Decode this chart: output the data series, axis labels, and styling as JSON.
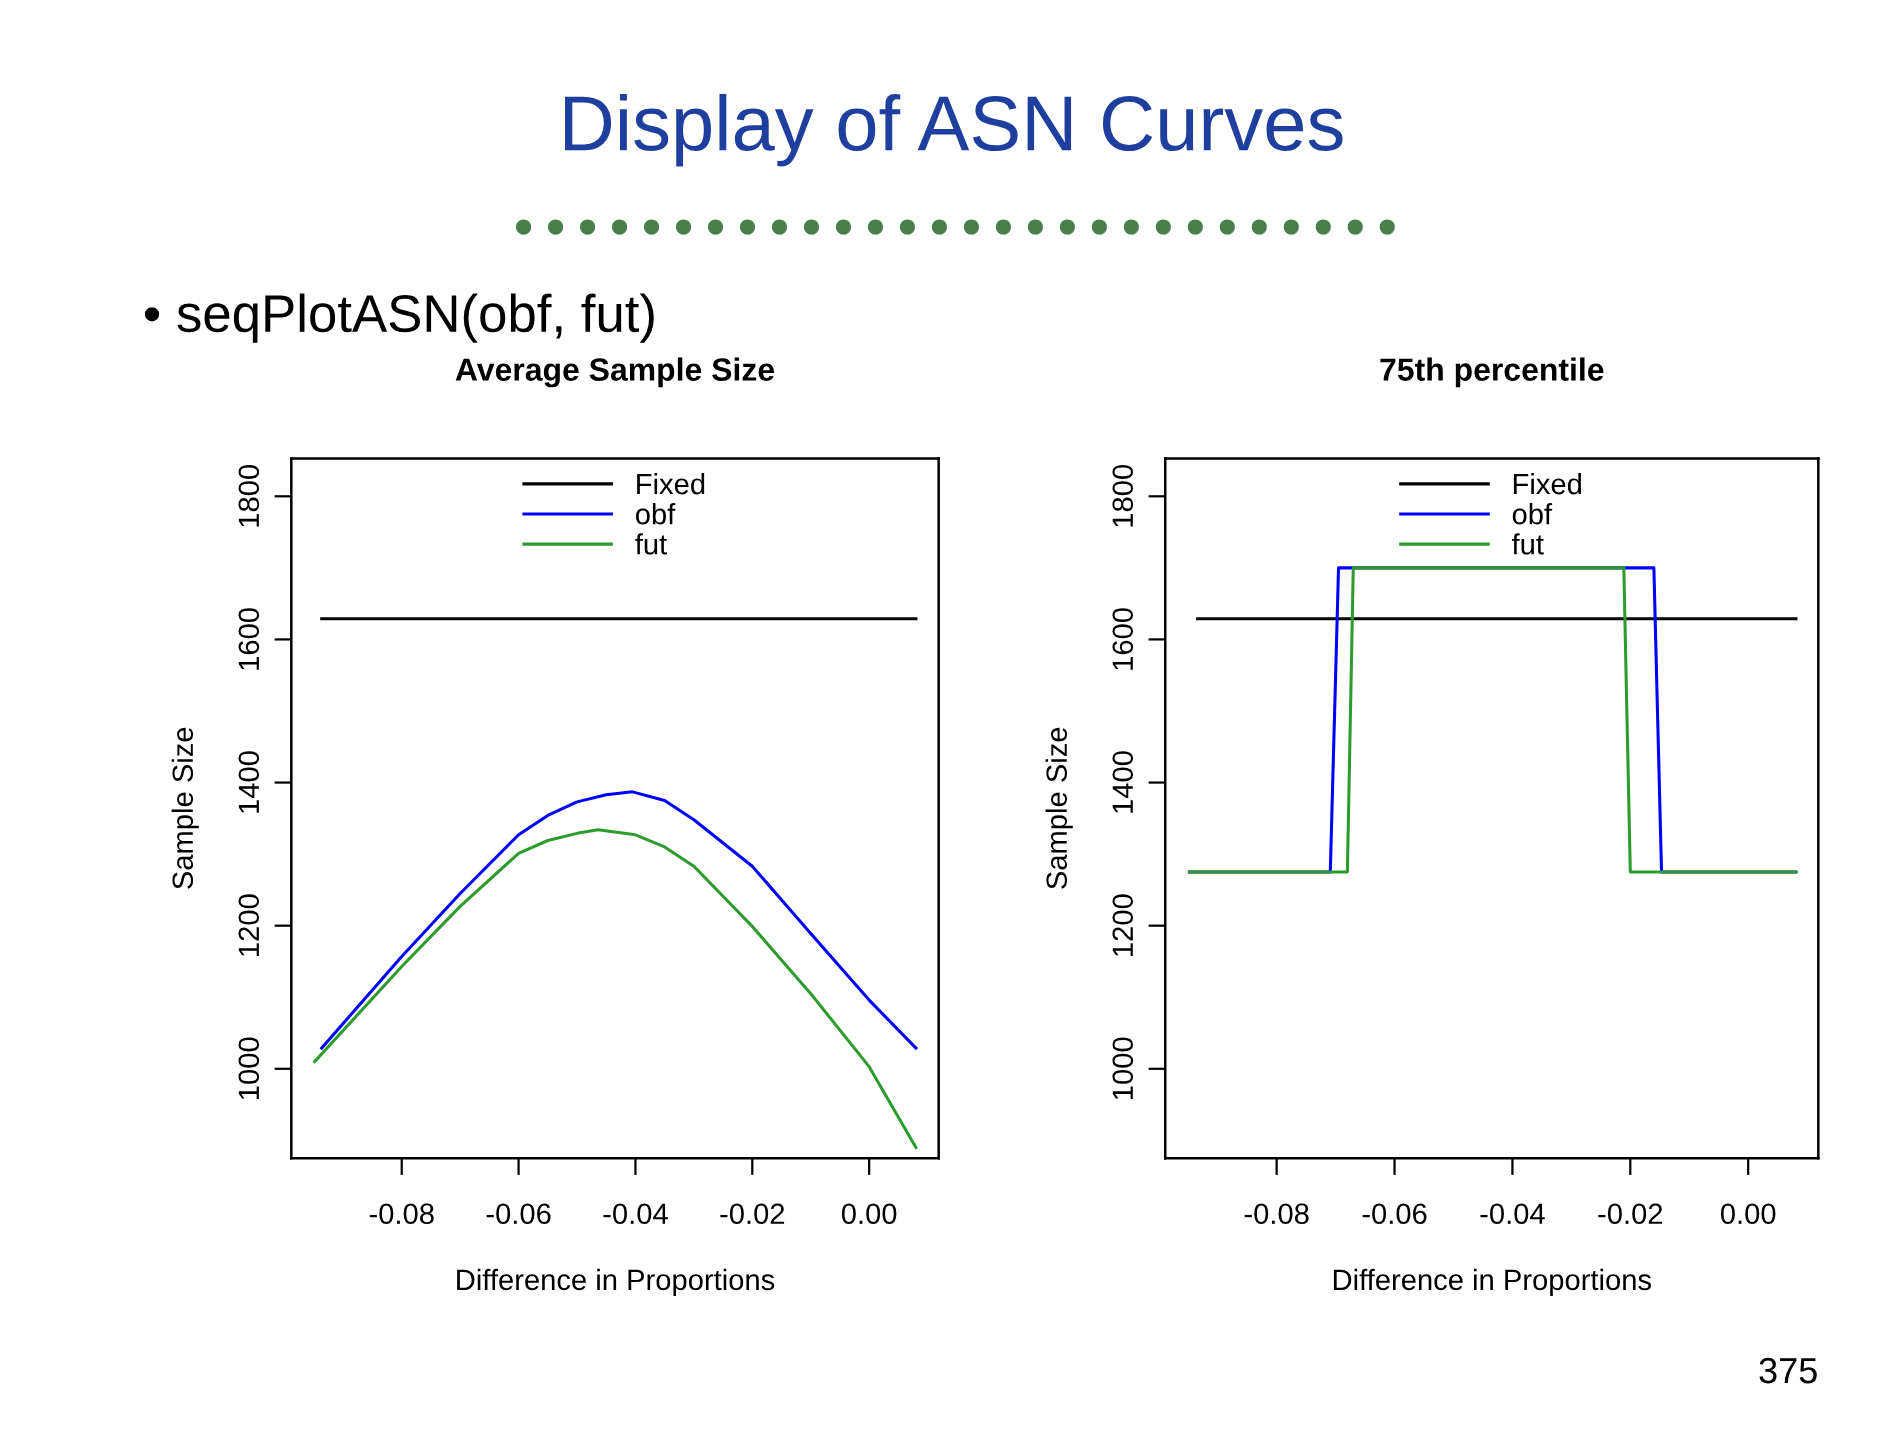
{
  "chart_data": [
    {
      "type": "other",
      "title": "Display of ASN Curves",
      "annotations": [
        "• seqPlotASN(obf, fut)",
        "375"
      ]
    },
    {
      "type": "line",
      "title": "Average Sample Size",
      "xlabel": "Difference in Proportions",
      "ylabel": "Sample Size",
      "xlim": [
        -0.0989,
        0.0119
      ],
      "ylim": [
        875,
        1853
      ],
      "xticks": [
        {
          "value": -0.08,
          "label": "-0.08"
        },
        {
          "value": -0.06,
          "label": "-0.06"
        },
        {
          "value": -0.04,
          "label": "-0.04"
        },
        {
          "value": -0.02,
          "label": "-0.02"
        },
        {
          "value": 0,
          "label": "0.00"
        }
      ],
      "yticks": [
        1000,
        1200,
        1400,
        1600,
        1800
      ],
      "legend": "top",
      "grid": false,
      "series": [
        {
          "name": "Fixed",
          "color": "#000000",
          "x": [
            -0.0937,
            0.008
          ],
          "values": [
            1629,
            1629
          ]
        },
        {
          "name": "obf",
          "color": "#0000ff",
          "x": [
            -0.0937,
            -0.08,
            -0.07,
            -0.06,
            -0.055,
            -0.05,
            -0.045,
            -0.0405,
            -0.035,
            -0.03,
            -0.02,
            -0.01,
            0,
            0.008
          ],
          "values": [
            1029,
            1157,
            1245,
            1327,
            1354,
            1373,
            1383,
            1387,
            1375,
            1348,
            1283,
            1189,
            1096,
            1029
          ]
        },
        {
          "name": "fut",
          "color": "#2e9b2e",
          "x": [
            -0.0949,
            -0.08,
            -0.07,
            -0.06,
            -0.055,
            -0.05,
            -0.0464,
            -0.04,
            -0.035,
            -0.03,
            -0.02,
            -0.01,
            0,
            0.008
          ],
          "values": [
            1010,
            1143,
            1227,
            1301,
            1319,
            1329,
            1334,
            1327,
            1310,
            1283,
            1199,
            1105,
            1003,
            890
          ]
        }
      ]
    },
    {
      "type": "line",
      "title": "75th percentile",
      "xlabel": "Difference in Proportions",
      "ylabel": "Sample Size",
      "xlim": [
        -0.0989,
        0.0119
      ],
      "ylim": [
        875,
        1853
      ],
      "xticks": [
        {
          "value": -0.08,
          "label": "-0.08"
        },
        {
          "value": -0.06,
          "label": "-0.06"
        },
        {
          "value": -0.04,
          "label": "-0.04"
        },
        {
          "value": -0.02,
          "label": "-0.02"
        },
        {
          "value": 0,
          "label": "0.00"
        }
      ],
      "yticks": [
        1000,
        1200,
        1400,
        1600,
        1800
      ],
      "legend": "top",
      "grid": false,
      "series": [
        {
          "name": "Fixed",
          "color": "#000000",
          "x": [
            -0.0934,
            0.0081
          ],
          "values": [
            1629,
            1629
          ]
        },
        {
          "name": "obf",
          "color": "#0000ff",
          "x": [
            -0.0948,
            -0.0709,
            -0.0695,
            -0.016,
            -0.0147,
            0.0081
          ],
          "values": [
            1275,
            1275,
            1700,
            1700,
            1275,
            1275
          ]
        },
        {
          "name": "fut",
          "color": "#2e9b2e",
          "x": [
            -0.0948,
            -0.068,
            -0.067,
            -0.0211,
            -0.02,
            0.0081
          ],
          "values": [
            1275,
            1275,
            1700,
            1700,
            1275,
            1275
          ]
        }
      ]
    }
  ]
}
